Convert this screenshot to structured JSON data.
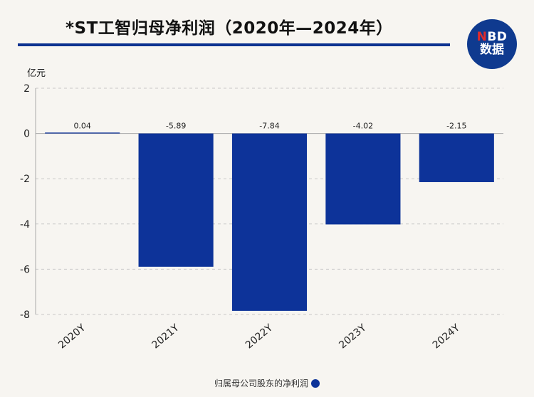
{
  "header": {
    "title": "*ST工智归母净利润（2020年—2024年）",
    "logo_brand_n": "N",
    "logo_brand_rest": "BD",
    "logo_sub": "数据"
  },
  "colors": {
    "bar": "#0d3399",
    "accent": "#0d3290",
    "grid": "#c8c8c8"
  },
  "chart_data": {
    "type": "bar",
    "title": "*ST工智归母净利润（2020年—2024年）",
    "ylabel": "亿元",
    "xlabel": "",
    "ylim": [
      -8,
      2
    ],
    "yticks": [
      2,
      0,
      -2,
      -4,
      -6,
      -8
    ],
    "grid": true,
    "legend_position": "bottom",
    "categories": [
      "2020Y",
      "2021Y",
      "2022Y",
      "2023Y",
      "2024Y"
    ],
    "series": [
      {
        "name": "归属母公司股东的净利润",
        "values": [
          0.04,
          -5.89,
          -7.84,
          -4.02,
          -2.15
        ]
      }
    ],
    "value_labels": [
      "0.04",
      "-5.89",
      "-7.84",
      "-4.02",
      "-2.15"
    ]
  }
}
